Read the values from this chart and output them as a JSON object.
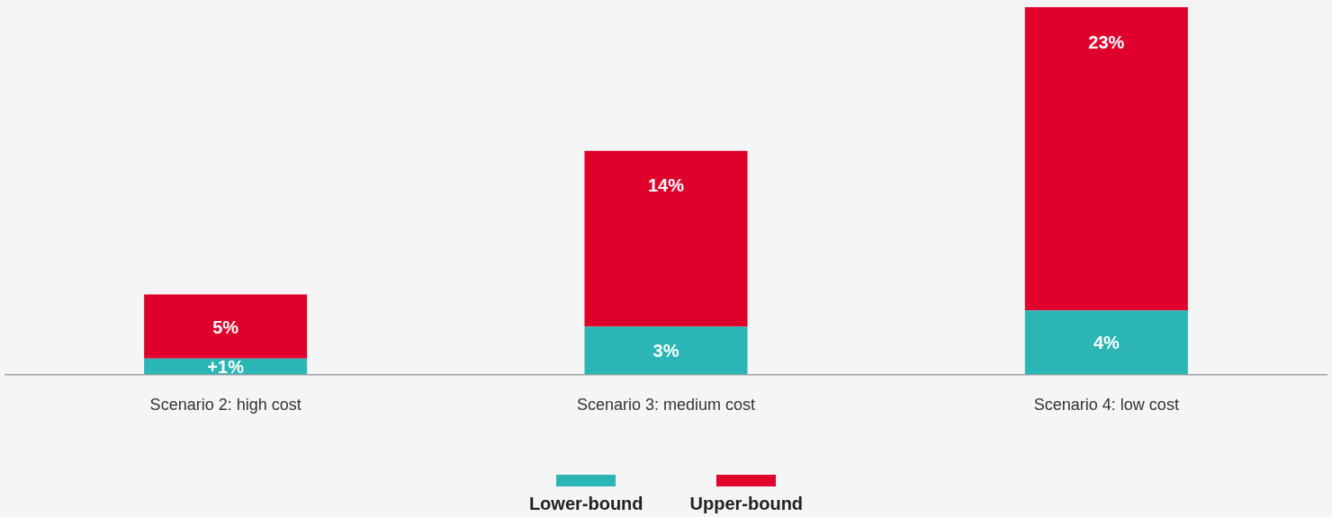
{
  "chart_data": {
    "type": "bar",
    "stacked": true,
    "totals": [
      "5%",
      "14%",
      "23%"
    ],
    "categories": [
      "Scenario 2: high cost",
      "Scenario 3: medium cost",
      "Scenario 4: low cost"
    ],
    "series": [
      {
        "name": "Lower-bound",
        "color": "#2bb5b5",
        "values": [
          1,
          3,
          4
        ],
        "value_labels": [
          "+1%",
          "3%",
          "4%"
        ]
      },
      {
        "name": "Upper-bound",
        "color": "#df002c",
        "values": [
          4,
          11,
          19
        ]
      }
    ],
    "ylim": [
      0,
      23
    ],
    "grid": false,
    "legend": "bottom",
    "tick_labels": "x"
  }
}
